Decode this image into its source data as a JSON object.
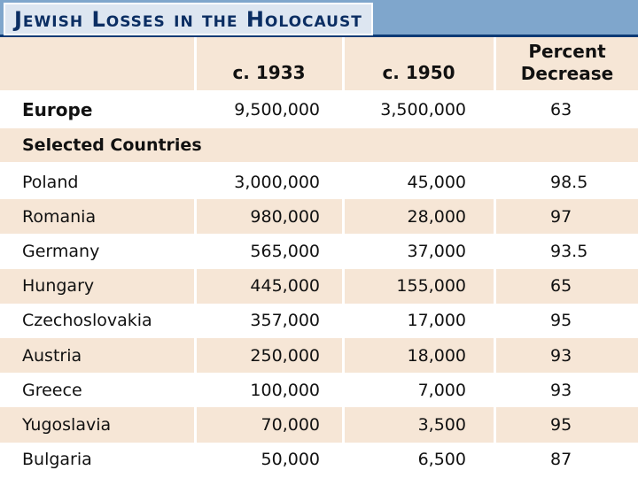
{
  "title": "Jewish Losses in the Holocaust",
  "table": {
    "headers": {
      "col0": "",
      "col1": "c. 1933",
      "col2": "c. 1950",
      "col3_line1": "Percent",
      "col3_line2": "Decrease"
    },
    "europe": {
      "region": "Europe",
      "c1933": "9,500,000",
      "c1950": "3,500,000",
      "percent": "63"
    },
    "section_label": "Selected Countries",
    "rows": [
      {
        "country": "Poland",
        "c1933": "3,000,000",
        "c1950": "45,000",
        "percent": "98.5"
      },
      {
        "country": "Romania",
        "c1933": "980,000",
        "c1950": "28,000",
        "percent": "97"
      },
      {
        "country": "Germany",
        "c1933": "565,000",
        "c1950": "37,000",
        "percent": "93.5"
      },
      {
        "country": "Hungary",
        "c1933": "445,000",
        "c1950": "155,000",
        "percent": "65"
      },
      {
        "country": "Czechoslovakia",
        "c1933": "357,000",
        "c1950": "17,000",
        "percent": "95"
      },
      {
        "country": "Austria",
        "c1933": "250,000",
        "c1950": "18,000",
        "percent": "93"
      },
      {
        "country": "Greece",
        "c1933": "100,000",
        "c1950": "7,000",
        "percent": "93"
      },
      {
        "country": "Yugoslavia",
        "c1933": "70,000",
        "c1950": "3,500",
        "percent": "95"
      },
      {
        "country": "Bulgaria",
        "c1933": "50,000",
        "c1950": "6,500",
        "percent": "87"
      }
    ]
  }
}
